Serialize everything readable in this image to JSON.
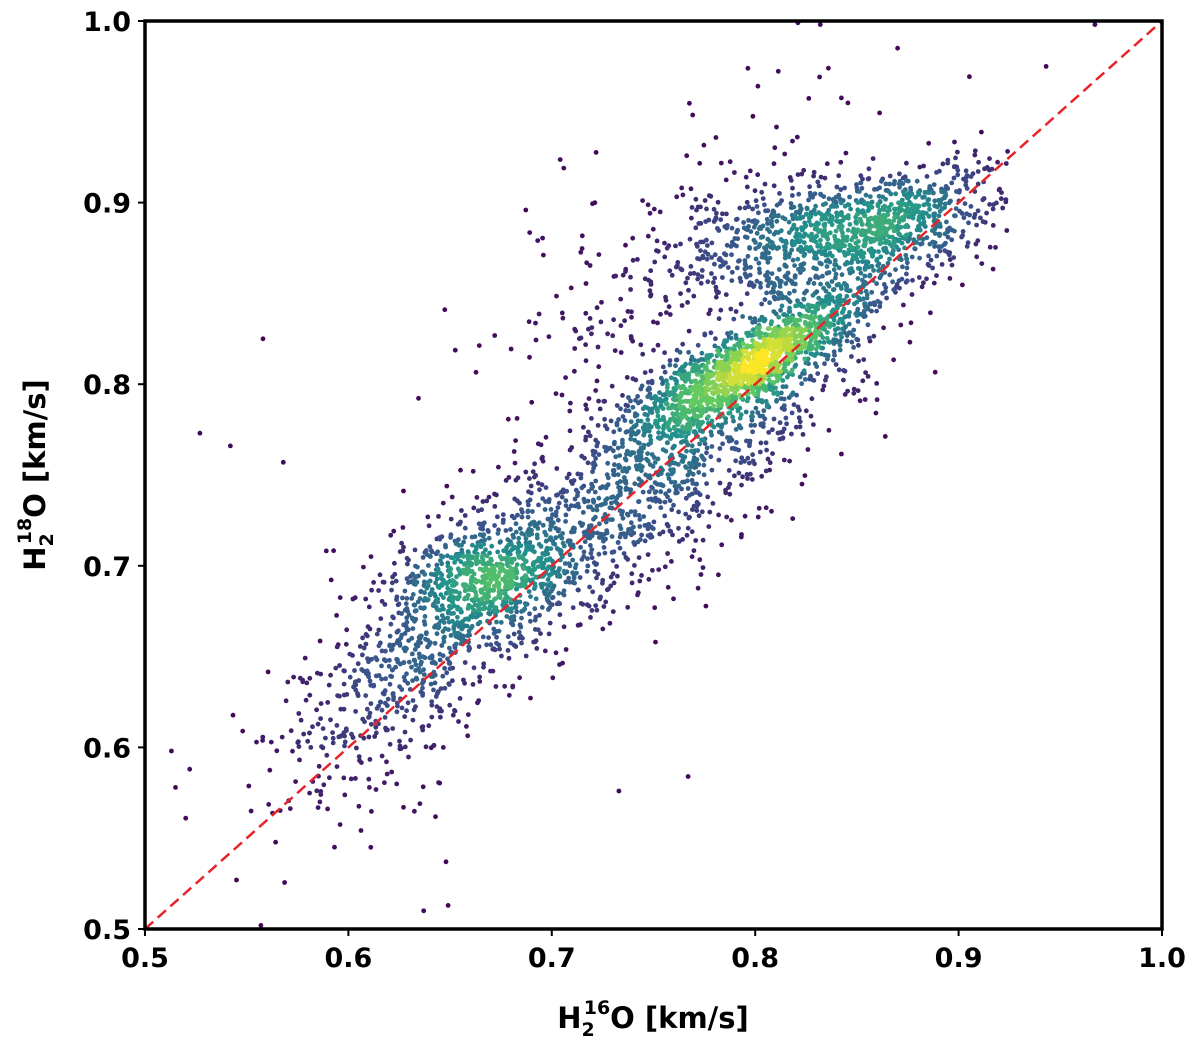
{
  "chart_data": {
    "type": "scatter",
    "title": "",
    "xlabel": {
      "base": "H",
      "sub": "2",
      "sup": "16",
      "rest": "O [km/s]"
    },
    "ylabel": {
      "base": "H",
      "sub": "2",
      "sup": "18",
      "rest": "O [km/s]"
    },
    "xlim": [
      0.5,
      1.0
    ],
    "ylim": [
      0.5,
      1.0
    ],
    "x_ticks": [
      0.5,
      0.6,
      0.7,
      0.8,
      0.9,
      1.0
    ],
    "y_ticks": [
      0.5,
      0.6,
      0.7,
      0.8,
      0.9,
      1.0
    ],
    "tick_labels": [
      "0.5",
      "0.6",
      "0.7",
      "0.8",
      "0.9",
      "1.0"
    ],
    "colormap": "viridis",
    "colors": {
      "colormap_stops": [
        "#440154",
        "#3b528b",
        "#21918c",
        "#5ec962",
        "#fde725"
      ],
      "reference_line": "#e8242b",
      "axes": "#000000"
    },
    "reference_line": {
      "style": "dashed",
      "x": [
        0.5,
        1.0
      ],
      "y": [
        0.5,
        1.0
      ]
    },
    "density_clusters": [
      {
        "cx": 0.8,
        "cy": 0.812,
        "sx": 0.03,
        "sy": 0.022,
        "rho": 0.85,
        "weight": 0.26
      },
      {
        "cx": 0.848,
        "cy": 0.885,
        "sx": 0.038,
        "sy": 0.016,
        "rho": 0.45,
        "weight": 0.2
      },
      {
        "cx": 0.745,
        "cy": 0.74,
        "sx": 0.05,
        "sy": 0.045,
        "rho": 0.8,
        "weight": 0.22
      },
      {
        "cx": 0.668,
        "cy": 0.693,
        "sx": 0.022,
        "sy": 0.015,
        "rho": 0.3,
        "weight": 0.1
      },
      {
        "cx": 0.64,
        "cy": 0.66,
        "sx": 0.038,
        "sy": 0.045,
        "rho": 0.75,
        "weight": 0.14
      },
      {
        "cx": 0.78,
        "cy": 0.86,
        "sx": 0.05,
        "sy": 0.045,
        "rho": 0.5,
        "weight": 0.08
      }
    ],
    "outlier_points": [
      {
        "x": 0.558,
        "y": 0.825
      },
      {
        "x": 0.527,
        "y": 0.773
      },
      {
        "x": 0.542,
        "y": 0.766
      },
      {
        "x": 0.568,
        "y": 0.757
      },
      {
        "x": 0.513,
        "y": 0.598
      },
      {
        "x": 0.522,
        "y": 0.588
      },
      {
        "x": 0.515,
        "y": 0.578
      },
      {
        "x": 0.52,
        "y": 0.561
      },
      {
        "x": 0.545,
        "y": 0.527
      },
      {
        "x": 0.557,
        "y": 0.502
      },
      {
        "x": 0.637,
        "y": 0.51
      },
      {
        "x": 0.649,
        "y": 0.513
      },
      {
        "x": 0.733,
        "y": 0.576
      },
      {
        "x": 0.767,
        "y": 0.584
      },
      {
        "x": 0.751,
        "y": 0.658
      },
      {
        "x": 0.769,
        "y": 0.705
      },
      {
        "x": 0.808,
        "y": 0.73
      },
      {
        "x": 0.823,
        "y": 0.745
      },
      {
        "x": 0.943,
        "y": 0.975
      },
      {
        "x": 0.967,
        "y": 0.998
      },
      {
        "x": 0.821,
        "y": 0.999
      },
      {
        "x": 0.832,
        "y": 0.998
      },
      {
        "x": 0.836,
        "y": 0.974
      },
      {
        "x": 0.87,
        "y": 0.985
      },
      {
        "x": 0.611,
        "y": 0.545
      },
      {
        "x": 0.586,
        "y": 0.57
      },
      {
        "x": 0.648,
        "y": 0.537
      }
    ]
  }
}
